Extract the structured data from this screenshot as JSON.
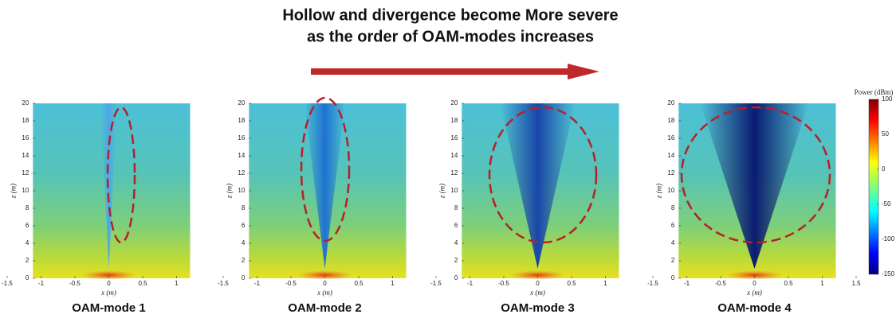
{
  "header": {
    "title_lines": [
      "Hollow and divergence become More severe",
      "as the order of OAM-modes increases"
    ]
  },
  "chart_data": [
    {
      "type": "heatmap",
      "title": "OAM-mode 1",
      "x_label": "x (m)",
      "y_label": "z (m)",
      "xlim": [
        -1.5,
        1.5
      ],
      "ylim": [
        0,
        20
      ],
      "xticks": [
        -1.5,
        -1,
        -0.5,
        0,
        0.5,
        1
      ],
      "yticks": [
        0,
        2,
        4,
        6,
        8,
        10,
        12,
        14,
        16,
        18,
        20
      ]
    },
    {
      "type": "heatmap",
      "title": "OAM-mode 2",
      "x_label": "x (m)",
      "y_label": "z (m)",
      "xlim": [
        -1.5,
        1.5
      ],
      "ylim": [
        0,
        20
      ],
      "xticks": [
        -1.5,
        -1,
        -0.5,
        0,
        0.5,
        1
      ],
      "yticks": [
        0,
        2,
        4,
        6,
        8,
        10,
        12,
        14,
        16,
        18,
        20
      ]
    },
    {
      "type": "heatmap",
      "title": "OAM-mode 3",
      "x_label": "x (m)",
      "y_label": "z (m)",
      "xlim": [
        -1.5,
        1.5
      ],
      "ylim": [
        0,
        20
      ],
      "xticks": [
        -1.5,
        -1,
        -0.5,
        0,
        0.5,
        1
      ],
      "yticks": [
        0,
        2,
        4,
        6,
        8,
        10,
        12,
        14,
        16,
        18,
        20
      ]
    },
    {
      "type": "heatmap",
      "title": "OAM-mode 4",
      "x_label": "x (m)",
      "y_label": "z (m)",
      "xlim": [
        -1.5,
        1.5
      ],
      "ylim": [
        0,
        20
      ],
      "xticks": [
        -1.5,
        -1,
        -0.5,
        0,
        0.5,
        1,
        1.5
      ],
      "yticks": [
        0,
        2,
        4,
        6,
        8,
        10,
        12,
        14,
        16,
        18,
        20
      ],
      "colorbar": {
        "label": "Power (dBm)",
        "clim": [
          -150,
          100
        ],
        "ticks": [
          -150,
          -100,
          -50,
          0,
          50,
          100
        ]
      }
    }
  ]
}
